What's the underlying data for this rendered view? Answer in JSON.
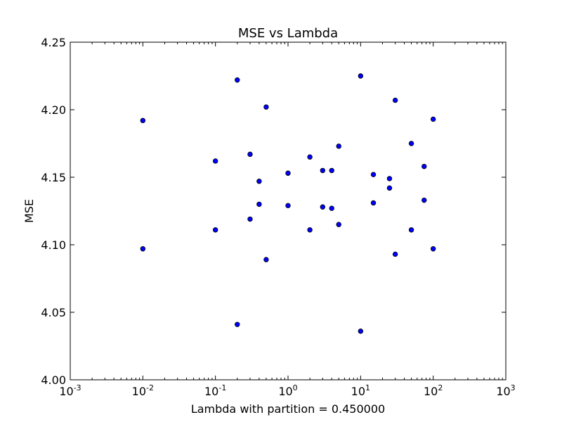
{
  "chart_data": {
    "type": "scatter",
    "title": "MSE vs Lambda",
    "xlabel": "Lambda with partition = 0.450000",
    "ylabel": "MSE",
    "xscale": "log",
    "xlim": [
      0.001,
      1000
    ],
    "ylim": [
      4.0,
      4.25
    ],
    "grid": false,
    "x_ticks": [
      {
        "value": 0.001,
        "base": "10",
        "exp": "-3"
      },
      {
        "value": 0.01,
        "base": "10",
        "exp": "-2"
      },
      {
        "value": 0.1,
        "base": "10",
        "exp": "-1"
      },
      {
        "value": 1,
        "base": "10",
        "exp": "0"
      },
      {
        "value": 10,
        "base": "10",
        "exp": "1"
      },
      {
        "value": 100,
        "base": "10",
        "exp": "2"
      },
      {
        "value": 1000,
        "base": "10",
        "exp": "3"
      }
    ],
    "y_ticks": [
      {
        "value": 4.0,
        "label": "4.00"
      },
      {
        "value": 4.05,
        "label": "4.05"
      },
      {
        "value": 4.1,
        "label": "4.10"
      },
      {
        "value": 4.15,
        "label": "4.15"
      },
      {
        "value": 4.2,
        "label": "4.20"
      },
      {
        "value": 4.25,
        "label": "4.25"
      }
    ],
    "marker_color": "#0000ff",
    "marker_edge": "#000000",
    "points": [
      {
        "x": 0.01,
        "y": 4.192
      },
      {
        "x": 0.01,
        "y": 4.097
      },
      {
        "x": 0.1,
        "y": 4.162
      },
      {
        "x": 0.1,
        "y": 4.111
      },
      {
        "x": 0.2,
        "y": 4.222
      },
      {
        "x": 0.2,
        "y": 4.041
      },
      {
        "x": 0.3,
        "y": 4.167
      },
      {
        "x": 0.3,
        "y": 4.119
      },
      {
        "x": 0.4,
        "y": 4.147
      },
      {
        "x": 0.4,
        "y": 4.13
      },
      {
        "x": 0.5,
        "y": 4.202
      },
      {
        "x": 0.5,
        "y": 4.089
      },
      {
        "x": 1,
        "y": 4.153
      },
      {
        "x": 1,
        "y": 4.129
      },
      {
        "x": 2,
        "y": 4.165
      },
      {
        "x": 2,
        "y": 4.111
      },
      {
        "x": 3,
        "y": 4.155
      },
      {
        "x": 3,
        "y": 4.128
      },
      {
        "x": 4,
        "y": 4.155
      },
      {
        "x": 4,
        "y": 4.127
      },
      {
        "x": 5,
        "y": 4.173
      },
      {
        "x": 5,
        "y": 4.115
      },
      {
        "x": 10,
        "y": 4.225
      },
      {
        "x": 10,
        "y": 4.036
      },
      {
        "x": 15,
        "y": 4.152
      },
      {
        "x": 15,
        "y": 4.131
      },
      {
        "x": 25,
        "y": 4.149
      },
      {
        "x": 25,
        "y": 4.142
      },
      {
        "x": 30,
        "y": 4.207
      },
      {
        "x": 30,
        "y": 4.093
      },
      {
        "x": 50,
        "y": 4.175
      },
      {
        "x": 50,
        "y": 4.111
      },
      {
        "x": 75,
        "y": 4.158
      },
      {
        "x": 75,
        "y": 4.133
      },
      {
        "x": 100,
        "y": 4.193
      },
      {
        "x": 100,
        "y": 4.097
      }
    ]
  }
}
